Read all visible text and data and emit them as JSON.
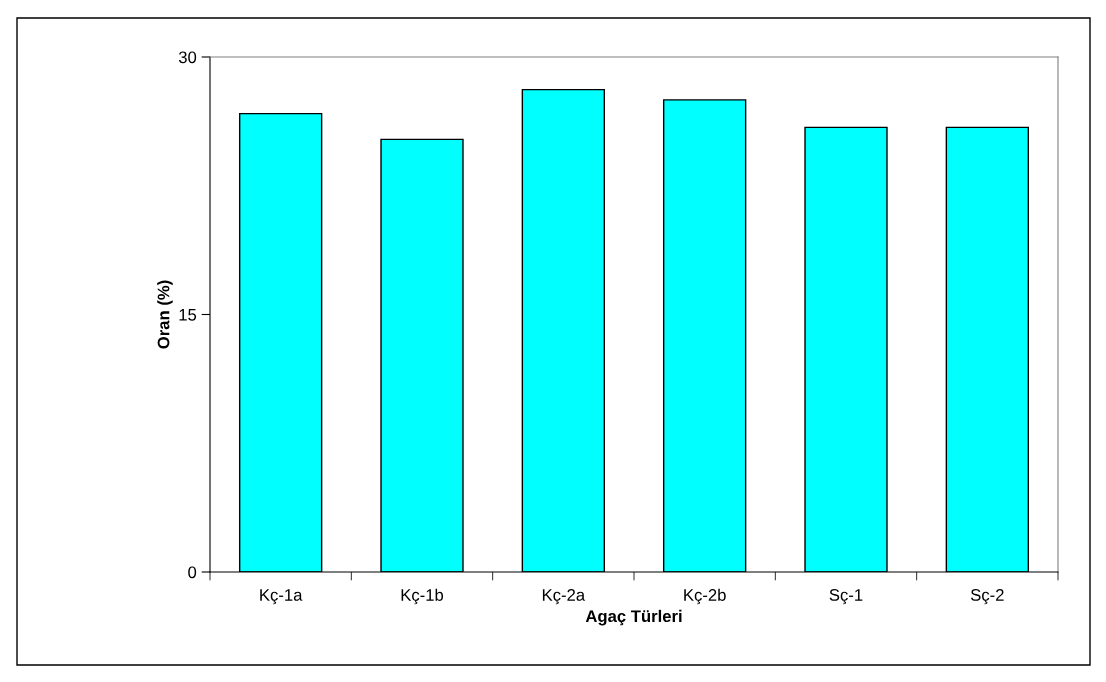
{
  "chart_data": {
    "type": "bar",
    "xlabel": "Agaç Türleri",
    "ylabel": "Oran (%)",
    "categories": [
      "Kç-1a",
      "Kç-1b",
      "Kç-2a",
      "Kç-2b",
      "Sç-1",
      "Sç-2"
    ],
    "values": [
      26.7,
      25.2,
      28.1,
      27.5,
      25.9,
      25.9
    ],
    "color": "#00ffff",
    "ylim": [
      0,
      30
    ],
    "yticks": [
      0,
      15,
      30
    ],
    "grid": false,
    "legend": false
  }
}
